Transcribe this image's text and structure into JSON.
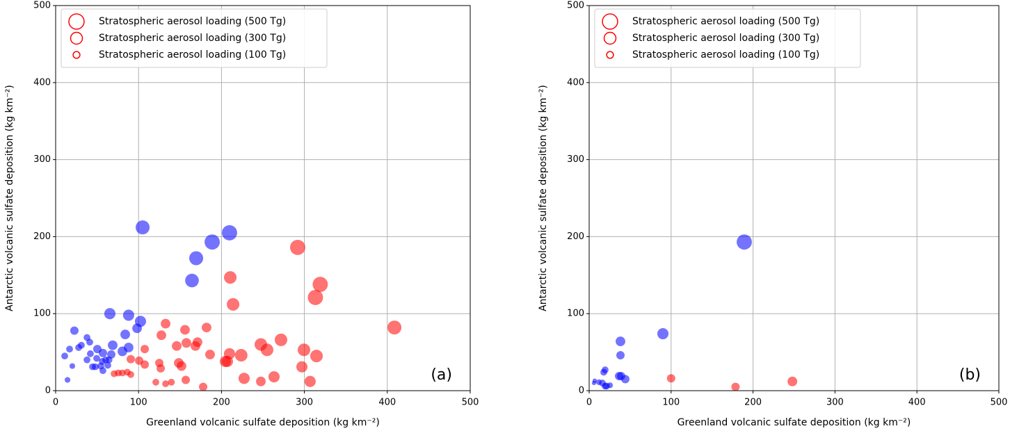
{
  "chart_data": [
    {
      "type": "scatter",
      "panel_label": "(a)",
      "xlabel": "Greenland volcanic sulfate deposition (kg km⁻²)",
      "ylabel": "Antarctic volcanic sulfate deposition (kg km⁻²)",
      "xlim": [
        0,
        500
      ],
      "ylim": [
        0,
        500
      ],
      "xticks": [
        0,
        100,
        200,
        300,
        400,
        500
      ],
      "yticks": [
        0,
        100,
        200,
        300,
        400,
        500
      ],
      "grid": true,
      "legend_loc": "upper left",
      "opacity": 0.55,
      "size_legend_color": "#ff0000",
      "size_legend": [
        {
          "value": 500,
          "label": "Stratospheric aerosol loading (500 Tg)"
        },
        {
          "value": 300,
          "label": "Stratospheric aerosol loading (300 Tg)"
        },
        {
          "value": 100,
          "label": "Stratospheric aerosol loading (100 Tg)"
        }
      ],
      "series": [
        {
          "color": "#0000ff",
          "x": [
            104.9,
            209.7,
            188.8,
            169.5,
            164.4,
            65.4,
            88,
            102.3,
            98.2,
            83.9,
            22.6,
            37.8,
            41.1,
            31,
            27.7,
            16.8,
            10.9,
            20.1,
            14.3,
            68.8,
            88,
            80.5,
            50.3,
            57,
            41.9,
            67.1,
            49.5,
            37.8,
            56.2,
            60.4,
            64.4,
            62.9,
            54.5,
            44.5,
            47.8,
            57
          ],
          "y": [
            212,
            205,
            193,
            172,
            143,
            100,
            98,
            90,
            81,
            73,
            78,
            69,
            63,
            59,
            56,
            54,
            45,
            32,
            14,
            59,
            56,
            51,
            54,
            49,
            48,
            47,
            42,
            40,
            38,
            40,
            40,
            33,
            32,
            31,
            31,
            26
          ],
          "sizes": [
            420,
            500,
            500,
            420,
            400,
            270,
            270,
            270,
            200,
            200,
            150,
            100,
            100,
            100,
            100,
            100,
            100,
            70,
            70,
            200,
            200,
            200,
            150,
            150,
            100,
            150,
            100,
            100,
            100,
            100,
            100,
            100,
            100,
            100,
            100,
            100
          ]
        },
        {
          "color": "#ff0000",
          "x": [
            291.9,
            319.1,
            313.3,
            210.6,
            214,
            408.6,
            271.8,
            247.5,
            255,
            299.5,
            314.6,
            223.8,
            209.7,
            207.2,
            204.7,
            297,
            306.9,
            263.4,
            227.3,
            247.5,
            132.6,
            156,
            182,
            171.1,
            168.6,
            146,
            157.7,
            127.5,
            186.2,
            148.5,
            151.8,
            125,
            126.7,
            107.4,
            107.4,
            90.6,
            100.7,
            156.9,
            177.9,
            120.8,
            132.6,
            139.6,
            70.5,
            75.5,
            80.5,
            86.4,
            90.6
          ],
          "y": [
            186,
            138,
            121,
            147,
            112,
            82,
            66,
            60,
            53,
            53,
            45,
            46,
            48,
            38,
            38,
            31,
            12,
            18,
            16,
            12,
            87,
            79,
            82,
            63,
            58,
            58,
            62,
            72,
            47,
            36,
            32,
            36,
            29,
            54,
            34,
            41,
            39,
            14,
            5,
            11,
            9,
            11,
            22,
            23,
            23,
            24,
            21
          ],
          "sizes": [
            500,
            500,
            500,
            340,
            340,
            420,
            340,
            340,
            340,
            340,
            340,
            340,
            270,
            270,
            270,
            270,
            270,
            270,
            270,
            200,
            200,
            200,
            200,
            200,
            200,
            200,
            200,
            200,
            200,
            200,
            200,
            150,
            150,
            150,
            150,
            150,
            150,
            150,
            150,
            100,
            100,
            100,
            100,
            100,
            100,
            100,
            100
          ]
        }
      ]
    },
    {
      "type": "scatter",
      "panel_label": "(b)",
      "xlabel": "Greenland volcanic sulfate deposition (kg km⁻²)",
      "ylabel": "Antarctic volcanic sulfate deposition (kg km⁻²)",
      "xlim": [
        0,
        500
      ],
      "ylim": [
        0,
        500
      ],
      "xticks": [
        0,
        100,
        200,
        300,
        400,
        500
      ],
      "yticks": [
        0,
        100,
        200,
        300,
        400,
        500
      ],
      "grid": true,
      "legend_loc": "upper left",
      "opacity": 0.55,
      "size_legend_color": "#ff0000",
      "size_legend": [
        {
          "value": 500,
          "label": "Stratospheric aerosol loading (500 Tg)"
        },
        {
          "value": 300,
          "label": "Stratospheric aerosol loading (300 Tg)"
        },
        {
          "value": 100,
          "label": "Stratospheric aerosol loading (100 Tg)"
        }
      ],
      "series": [
        {
          "color": "#0000ff",
          "x": [
            189.3,
            90,
            38.2,
            38.2,
            39,
            36.5,
            44.1,
            19.5,
            17.8,
            16.1,
            21.2,
            19.5,
            25.5,
            11.9,
            6.8,
            5.9
          ],
          "y": [
            193,
            74,
            64,
            46,
            19,
            19,
            15,
            27,
            24,
            10,
            6,
            6,
            7,
            11,
            13,
            10
          ],
          "sizes": [
            500,
            270,
            200,
            150,
            150,
            150,
            150,
            100,
            100,
            100,
            100,
            100,
            70,
            70,
            40,
            40
          ]
        },
        {
          "color": "#ff0000",
          "x": [
            248,
            100,
            178.6
          ],
          "y": [
            12,
            16,
            5
          ],
          "sizes": [
            200,
            150,
            150
          ]
        }
      ]
    }
  ]
}
